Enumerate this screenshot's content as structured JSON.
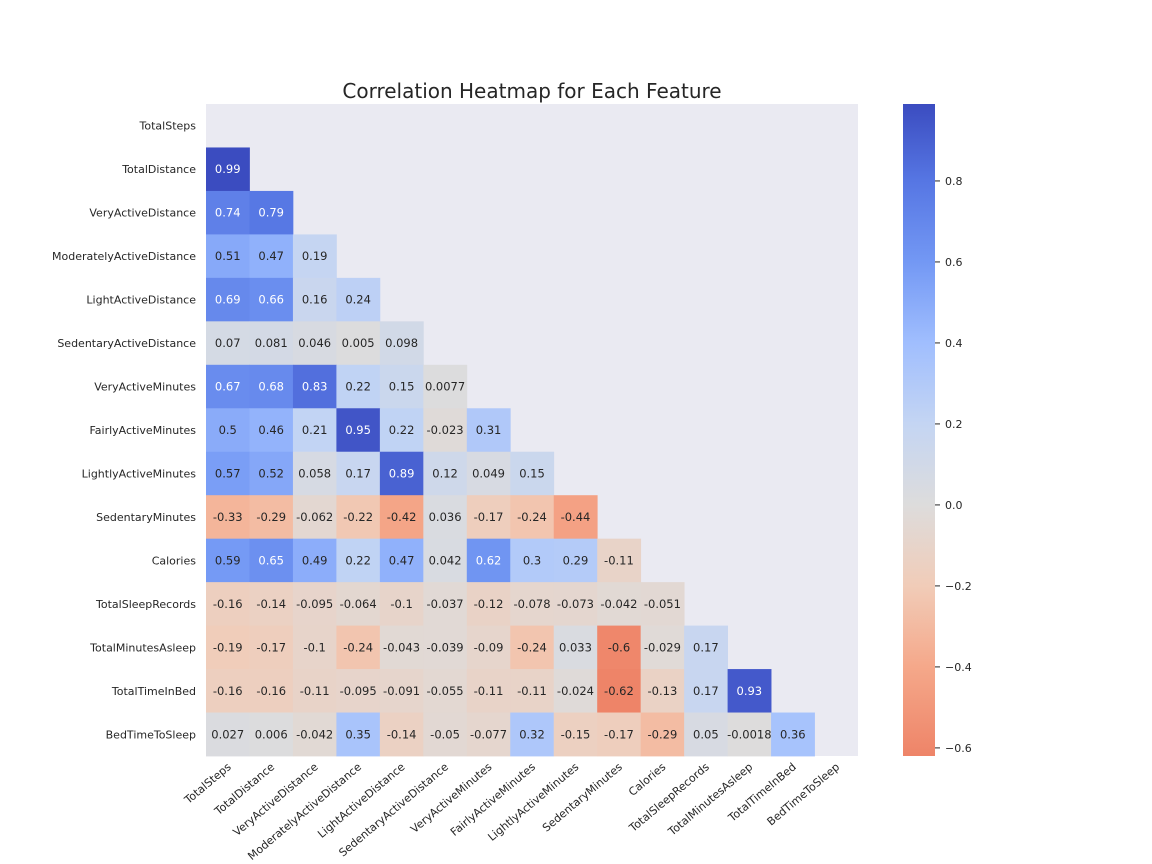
{
  "chart_data": {
    "type": "heatmap",
    "title": "Correlation Heatmap for Each Feature",
    "xlabel": "",
    "ylabel": "",
    "labels": [
      "TotalSteps",
      "TotalDistance",
      "VeryActiveDistance",
      "ModeratelyActiveDistance",
      "LightActiveDistance",
      "SedentaryActiveDistance",
      "VeryActiveMinutes",
      "FairlyActiveMinutes",
      "LightlyActiveMinutes",
      "SedentaryMinutes",
      "Calories",
      "TotalSleepRecords",
      "TotalMinutesAsleep",
      "TotalTimeInBed",
      "BedTimeToSleep"
    ],
    "matrix_lower": [
      [],
      [
        "0.99"
      ],
      [
        "0.74",
        "0.79"
      ],
      [
        "0.51",
        "0.47",
        "0.19"
      ],
      [
        "0.69",
        "0.66",
        "0.16",
        "0.24"
      ],
      [
        "0.07",
        "0.081",
        "0.046",
        "0.005",
        "0.098"
      ],
      [
        "0.67",
        "0.68",
        "0.83",
        "0.22",
        "0.15",
        "0.0077"
      ],
      [
        "0.5",
        "0.46",
        "0.21",
        "0.95",
        "0.22",
        "-0.023",
        "0.31"
      ],
      [
        "0.57",
        "0.52",
        "0.058",
        "0.17",
        "0.89",
        "0.12",
        "0.049",
        "0.15"
      ],
      [
        "-0.33",
        "-0.29",
        "-0.062",
        "-0.22",
        "-0.42",
        "0.036",
        "-0.17",
        "-0.24",
        "-0.44"
      ],
      [
        "0.59",
        "0.65",
        "0.49",
        "0.22",
        "0.47",
        "0.042",
        "0.62",
        "0.3",
        "0.29",
        "-0.11"
      ],
      [
        "-0.16",
        "-0.14",
        "-0.095",
        "-0.064",
        "-0.1",
        "-0.037",
        "-0.12",
        "-0.078",
        "-0.073",
        "-0.042",
        "-0.051"
      ],
      [
        "-0.19",
        "-0.17",
        "-0.1",
        "-0.24",
        "-0.043",
        "-0.039",
        "-0.09",
        "-0.24",
        "0.033",
        "-0.6",
        "-0.029",
        "0.17"
      ],
      [
        "-0.16",
        "-0.16",
        "-0.11",
        "-0.095",
        "-0.091",
        "-0.055",
        "-0.11",
        "-0.11",
        "-0.024",
        "-0.62",
        "-0.13",
        "0.17",
        "0.93"
      ],
      [
        "0.027",
        "0.006",
        "-0.042",
        "0.35",
        "-0.14",
        "-0.05",
        "-0.077",
        "0.32",
        "-0.15",
        "-0.17",
        "-0.29",
        "0.05",
        "-0.0018",
        "0.36"
      ]
    ],
    "colormap": "coolwarm_r",
    "vmin": -0.62,
    "vmax": 0.99,
    "colorbar_ticks": [
      "0.8",
      "0.6",
      "0.4",
      "0.2",
      "0.0",
      "−0.2",
      "−0.4",
      "−0.6"
    ],
    "colorbar_tick_values": [
      0.8,
      0.6,
      0.4,
      0.2,
      0.0,
      -0.2,
      -0.4,
      -0.6
    ],
    "mask": "upper-triangle",
    "grid": false,
    "colors": {
      "background": "#eaeaf2",
      "negative": "#ee8468",
      "neutral": "#dddcdc",
      "positive": "#3b4cc0"
    }
  }
}
